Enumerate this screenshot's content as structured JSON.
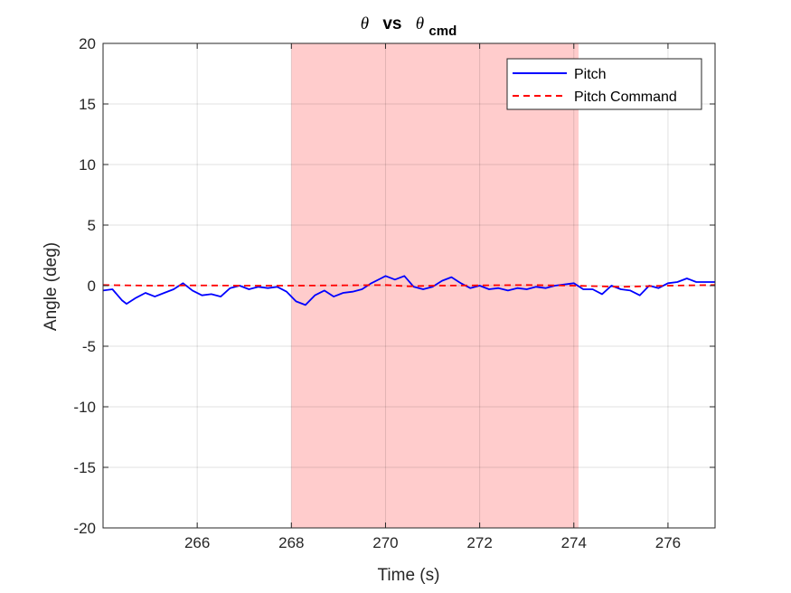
{
  "chart_data": {
    "type": "line",
    "title": {
      "symbol": "θ",
      "vs": "vs",
      "cmd_symbol": "θ",
      "cmd_subscript": "cmd"
    },
    "xlabel": "Time (s)",
    "ylabel": "Angle (deg)",
    "xlim": [
      264,
      277
    ],
    "ylim": [
      -20,
      20
    ],
    "xticks": [
      266,
      268,
      270,
      272,
      274,
      276
    ],
    "yticks": [
      -20,
      -15,
      -10,
      -5,
      0,
      5,
      10,
      15,
      20
    ],
    "grid": true,
    "legend_location": "top-right",
    "shaded_region": {
      "x": [
        268,
        274.1
      ],
      "color": "#ffcccc"
    },
    "series": [
      {
        "name": "Pitch",
        "color": "#0000ff",
        "style": "solid",
        "x": [
          264.0,
          264.2,
          264.4,
          264.5,
          264.7,
          264.9,
          265.1,
          265.3,
          265.5,
          265.7,
          265.9,
          266.1,
          266.3,
          266.5,
          266.7,
          266.9,
          267.1,
          267.3,
          267.5,
          267.7,
          267.9,
          268.1,
          268.3,
          268.5,
          268.7,
          268.9,
          269.1,
          269.3,
          269.5,
          269.7,
          269.9,
          270.0,
          270.2,
          270.4,
          270.6,
          270.8,
          271.0,
          271.2,
          271.4,
          271.6,
          271.8,
          272.0,
          272.2,
          272.4,
          272.6,
          272.8,
          273.0,
          273.2,
          273.4,
          273.6,
          273.8,
          274.0,
          274.2,
          274.4,
          274.6,
          274.8,
          275.0,
          275.2,
          275.4,
          275.6,
          275.8,
          276.0,
          276.2,
          276.4,
          276.6,
          276.8,
          277.0
        ],
        "y": [
          -0.4,
          -0.3,
          -1.2,
          -1.5,
          -1.0,
          -0.6,
          -0.9,
          -0.6,
          -0.3,
          0.2,
          -0.4,
          -0.8,
          -0.7,
          -0.9,
          -0.2,
          0.0,
          -0.3,
          -0.1,
          -0.2,
          -0.1,
          -0.5,
          -1.3,
          -1.6,
          -0.8,
          -0.4,
          -0.9,
          -0.6,
          -0.5,
          -0.3,
          0.2,
          0.6,
          0.8,
          0.5,
          0.8,
          -0.1,
          -0.3,
          -0.1,
          0.4,
          0.7,
          0.2,
          -0.2,
          0.0,
          -0.3,
          -0.2,
          -0.4,
          -0.2,
          -0.3,
          -0.1,
          -0.2,
          0.0,
          0.1,
          0.2,
          -0.3,
          -0.3,
          -0.7,
          0.0,
          -0.3,
          -0.4,
          -0.8,
          0.0,
          -0.2,
          0.2,
          0.3,
          0.6,
          0.3,
          0.3,
          0.3
        ]
      },
      {
        "name": "Pitch Command",
        "color": "#ff0000",
        "style": "dashed",
        "x": [
          264.0,
          265.0,
          266.0,
          267.0,
          268.0,
          269.0,
          270.0,
          270.5,
          271.0,
          272.0,
          273.0,
          274.0,
          275.0,
          276.0,
          277.0
        ],
        "y": [
          0.05,
          0.0,
          0.02,
          0.0,
          0.0,
          0.02,
          0.05,
          -0.05,
          0.0,
          0.02,
          0.05,
          0.0,
          -0.1,
          0.0,
          0.05
        ]
      }
    ]
  }
}
